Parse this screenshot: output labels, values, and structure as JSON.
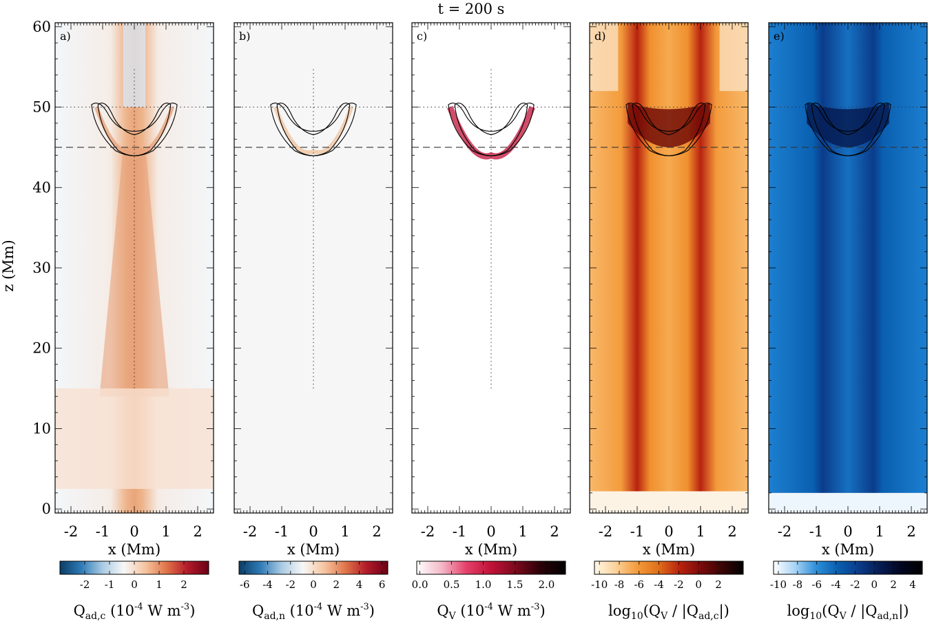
{
  "figure_title": "t =  200 s",
  "shared_axes": {
    "xlabel": "x (Mm)",
    "ylabel": "z (Mm)",
    "xlim": [
      -2.5,
      2.5
    ],
    "ylim": [
      -0.5,
      60.5
    ],
    "xticks": [
      -2,
      -1,
      0,
      1,
      2
    ],
    "yticks": [
      0,
      10,
      20,
      30,
      40,
      50,
      60
    ],
    "dotted_line_z": 50,
    "dashed_line_z": 45,
    "vertical_dotted_line": {
      "x": 0,
      "z_range": [
        15,
        55
      ]
    }
  },
  "chart_data": [
    {
      "type": "heatmap",
      "panel": "a)",
      "colorbar": {
        "label_main": "Q",
        "label_sub": "ad,c",
        "label_units": "(10",
        "label_exp": "-4",
        "label_rest": "W m",
        "label_exp2": "-3",
        "label_close": ")",
        "ticks": [
          "-2",
          "-1",
          "0",
          "1",
          "2"
        ],
        "tick_values": [
          -2,
          -1,
          0,
          1,
          2
        ],
        "range": [
          -3,
          3
        ],
        "colormap": [
          "#0a3d66",
          "#2f7ab5",
          "#a9cbe3",
          "#f7f7f7",
          "#f6c5a1",
          "#e0764a",
          "#b21a2a",
          "#6b0014"
        ]
      }
    },
    {
      "type": "heatmap",
      "panel": "b)",
      "colorbar": {
        "label_main": "Q",
        "label_sub": "ad,n",
        "label_units": "(10",
        "label_exp": "-4",
        "label_rest": "W m",
        "label_exp2": "-3",
        "label_close": ")",
        "ticks": [
          "-6",
          "-4",
          "-2",
          "0",
          "2",
          "4",
          "6"
        ],
        "tick_values": [
          -6,
          -4,
          -2,
          0,
          2,
          4,
          6
        ],
        "range": [
          -6.5,
          6.5
        ],
        "colormap": [
          "#0a3d66",
          "#2f7ab5",
          "#a9cbe3",
          "#f7f7f7",
          "#f6c5a1",
          "#e0764a",
          "#b21a2a",
          "#6b0014"
        ]
      }
    },
    {
      "type": "heatmap",
      "panel": "c)",
      "colorbar": {
        "label_main": "Q",
        "label_sub": "V",
        "label_units": "(10",
        "label_exp": "-4",
        "label_rest": "W m",
        "label_exp2": "-3",
        "label_close": ")",
        "ticks": [
          "0.0",
          "0.5",
          "1.0",
          "1.5",
          "2.0"
        ],
        "tick_values": [
          0,
          0.5,
          1.0,
          1.5,
          2.0
        ],
        "range": [
          -0.05,
          2.3
        ],
        "colormap": [
          "#ffffff",
          "#f4b9c8",
          "#e5406a",
          "#c01238",
          "#7a0a1c",
          "#2a0008",
          "#000000"
        ]
      }
    },
    {
      "type": "heatmap",
      "panel": "d)",
      "colorbar": {
        "label_main": "log",
        "label_sub": "10",
        "label_body": "(Q",
        "label_sub2": "V",
        "label_mid": " / |Q",
        "label_sub3": "ad,c",
        "label_close": "|)",
        "ticks": [
          "-10",
          "-8",
          "-6",
          "-4",
          "-2",
          "0",
          "2"
        ],
        "tick_values": [
          -10,
          -8,
          -6,
          -4,
          -2,
          0,
          2
        ],
        "range": [
          -10.5,
          4.5
        ],
        "colormap": [
          "#fff7e6",
          "#fbd29a",
          "#f39b3c",
          "#e0701a",
          "#b8220f",
          "#7a0a0a",
          "#3a0505",
          "#000000"
        ]
      }
    },
    {
      "type": "heatmap",
      "panel": "e)",
      "colorbar": {
        "label_main": "log",
        "label_sub": "10",
        "label_body": "(Q",
        "label_sub2": "V",
        "label_mid": " / |Q",
        "label_sub3": "ad,n",
        "label_close": "|)",
        "ticks": [
          "-10",
          "-8",
          "-6",
          "-4",
          "-2",
          "0",
          "2",
          "4"
        ],
        "tick_values": [
          -10,
          -8,
          -6,
          -4,
          -2,
          0,
          2,
          4
        ],
        "range": [
          -10.5,
          5.0
        ],
        "colormap": [
          "#ffffff",
          "#a9d4f5",
          "#2f8fd8",
          "#0a5fb0",
          "#0a3c8a",
          "#061c52",
          "#010620",
          "#000000"
        ]
      }
    }
  ]
}
